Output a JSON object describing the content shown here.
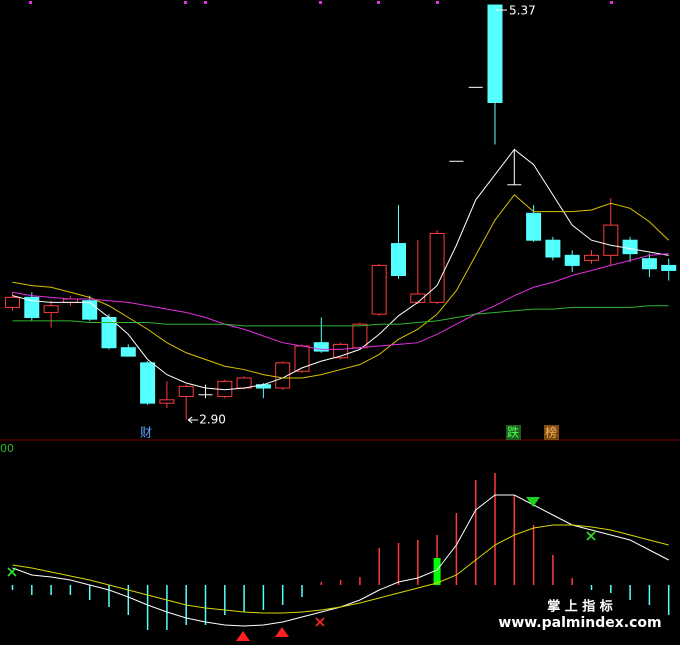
{
  "chart_data": [
    {
      "type": "candlestick",
      "ylim": [
        2.87,
        5.4
      ],
      "up_color": "#ff3b3b",
      "down_color": "#54ffff",
      "flat_color": "#ffffff",
      "open": [
        3.57,
        3.63,
        3.54,
        3.6,
        3.61,
        3.51,
        3.33,
        3.24,
        3.0,
        3.04,
        3.05,
        3.04,
        3.09,
        3.11,
        3.09,
        3.19,
        3.36,
        3.27,
        3.33,
        3.53,
        3.95,
        3.6,
        3.6,
        4.44,
        4.88,
        5.37,
        4.3,
        4.13,
        3.97,
        3.88,
        3.85,
        3.88,
        3.97,
        3.86,
        3.82
      ],
      "high": [
        3.66,
        3.66,
        3.61,
        3.64,
        3.64,
        3.53,
        3.35,
        3.25,
        3.13,
        3.11,
        3.11,
        3.14,
        3.16,
        3.12,
        3.25,
        3.35,
        3.51,
        3.36,
        3.48,
        3.83,
        4.18,
        3.97,
        4.03,
        4.44,
        4.88,
        5.37,
        4.51,
        4.18,
        3.99,
        3.91,
        3.91,
        4.22,
        3.99,
        3.89,
        3.86
      ],
      "low": [
        3.55,
        3.49,
        3.45,
        3.58,
        3.49,
        3.32,
        3.28,
        2.99,
        2.97,
        2.9,
        3.03,
        3.03,
        3.08,
        3.03,
        3.08,
        3.18,
        3.3,
        3.26,
        3.32,
        3.52,
        3.74,
        3.59,
        3.59,
        4.44,
        4.88,
        4.54,
        4.3,
        3.96,
        3.85,
        3.78,
        3.83,
        3.82,
        3.84,
        3.75,
        3.73
      ],
      "close": [
        3.63,
        3.51,
        3.58,
        3.62,
        3.5,
        3.33,
        3.28,
        3.0,
        3.02,
        3.1,
        3.05,
        3.13,
        3.15,
        3.09,
        3.24,
        3.34,
        3.31,
        3.35,
        3.47,
        3.82,
        3.76,
        3.65,
        4.01,
        4.44,
        4.88,
        4.79,
        4.3,
        3.97,
        3.87,
        3.82,
        3.88,
        4.06,
        3.89,
        3.8,
        3.79
      ],
      "high_label": "5.37",
      "low_label": "2.90",
      "event_labels": [
        "财",
        "跌",
        "榜"
      ],
      "series": [
        {
          "color": "#ffffff",
          "values": [
            3.64,
            3.61,
            3.6,
            3.6,
            3.6,
            3.51,
            3.41,
            3.26,
            3.17,
            3.12,
            3.09,
            3.08,
            3.09,
            3.11,
            3.15,
            3.21,
            3.25,
            3.28,
            3.32,
            3.41,
            3.52,
            3.6,
            3.7,
            3.94,
            4.21,
            4.36,
            4.51,
            4.42,
            4.24,
            4.06,
            3.97,
            3.94,
            3.92,
            3.9,
            3.88
          ]
        },
        {
          "color": "#d8c200",
          "values": [
            3.72,
            3.7,
            3.69,
            3.66,
            3.63,
            3.58,
            3.51,
            3.44,
            3.36,
            3.3,
            3.26,
            3.22,
            3.2,
            3.17,
            3.15,
            3.15,
            3.17,
            3.2,
            3.23,
            3.29,
            3.38,
            3.44,
            3.53,
            3.67,
            3.88,
            4.09,
            4.24,
            4.14,
            4.14,
            4.14,
            4.15,
            4.19,
            4.16,
            4.08,
            3.97
          ]
        },
        {
          "color": "#e030e0",
          "values": [
            3.66,
            3.64,
            3.63,
            3.62,
            3.62,
            3.61,
            3.6,
            3.58,
            3.56,
            3.54,
            3.51,
            3.47,
            3.44,
            3.4,
            3.36,
            3.34,
            3.32,
            3.32,
            3.33,
            3.34,
            3.35,
            3.36,
            3.41,
            3.47,
            3.53,
            3.58,
            3.64,
            3.69,
            3.72,
            3.76,
            3.79,
            3.82,
            3.85,
            3.88,
            3.89
          ]
        },
        {
          "color": "#2fb52f",
          "values": [
            3.49,
            3.49,
            3.49,
            3.49,
            3.48,
            3.48,
            3.48,
            3.48,
            3.47,
            3.47,
            3.47,
            3.47,
            3.46,
            3.46,
            3.46,
            3.46,
            3.46,
            3.46,
            3.46,
            3.47,
            3.47,
            3.48,
            3.49,
            3.51,
            3.53,
            3.54,
            3.55,
            3.56,
            3.56,
            3.57,
            3.57,
            3.57,
            3.57,
            3.58,
            3.58
          ]
        }
      ]
    },
    {
      "type": "macd",
      "title": "00",
      "ylim": [
        -0.55,
        1.4
      ],
      "up_color": "#ff3b3b",
      "down_color": "#54ffff",
      "histogram": [
        -0.05,
        -0.1,
        -0.1,
        -0.1,
        -0.15,
        -0.22,
        -0.3,
        -0.45,
        -0.45,
        -0.4,
        -0.4,
        -0.3,
        -0.27,
        -0.25,
        -0.2,
        -0.12,
        0.03,
        0.05,
        0.08,
        0.37,
        0.42,
        0.45,
        0.5,
        0.72,
        1.05,
        1.12,
        0.9,
        0.6,
        0.3,
        0.07,
        -0.05,
        -0.08,
        -0.15,
        -0.2,
        -0.3
      ],
      "highlight": {
        "color": "#00ff00",
        "values": [
          null,
          null,
          null,
          null,
          null,
          null,
          null,
          null,
          null,
          null,
          null,
          null,
          null,
          null,
          null,
          null,
          null,
          null,
          null,
          null,
          null,
          null,
          0.27,
          null,
          null,
          null,
          null,
          null,
          null,
          null,
          null,
          null,
          null,
          null,
          null
        ]
      },
      "series": [
        {
          "color": "#ffffff",
          "values": [
            0.17,
            0.1,
            0.08,
            0.05,
            0,
            -0.05,
            -0.12,
            -0.2,
            -0.27,
            -0.33,
            -0.37,
            -0.4,
            -0.41,
            -0.4,
            -0.37,
            -0.32,
            -0.27,
            -0.22,
            -0.15,
            -0.05,
            0.03,
            0.07,
            0.15,
            0.4,
            0.75,
            0.9,
            0.9,
            0.8,
            0.7,
            0.6,
            0.55,
            0.5,
            0.45,
            0.35,
            0.25
          ]
        },
        {
          "color": "#d8d800",
          "values": [
            0.2,
            0.17,
            0.13,
            0.09,
            0.05,
            0,
            -0.05,
            -0.1,
            -0.15,
            -0.2,
            -0.23,
            -0.25,
            -0.27,
            -0.28,
            -0.28,
            -0.27,
            -0.25,
            -0.22,
            -0.18,
            -0.13,
            -0.08,
            -0.03,
            0.02,
            0.1,
            0.25,
            0.4,
            0.5,
            0.57,
            0.6,
            0.6,
            0.58,
            0.55,
            0.5,
            0.45,
            0.4
          ]
        }
      ]
    }
  ],
  "watermark": {
    "title": "掌 上 指 标",
    "url": "www.palmindex.com"
  }
}
